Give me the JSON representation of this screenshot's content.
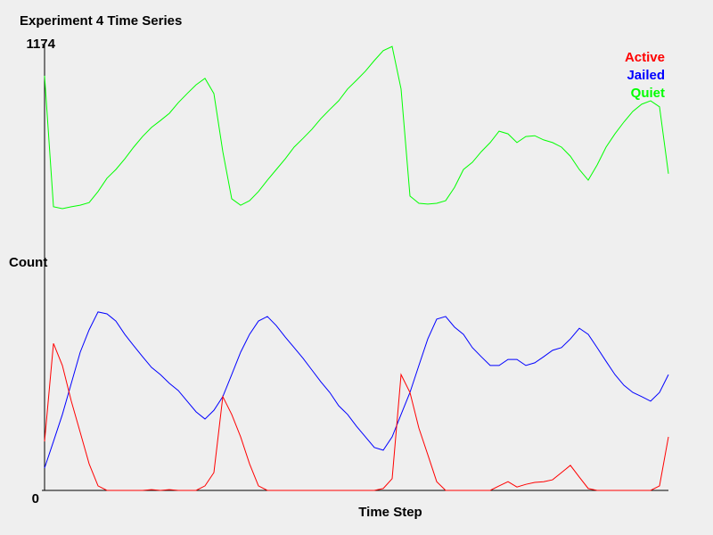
{
  "chart_data": {
    "type": "line",
    "title": "Experiment 4 Time Series",
    "x_label": "Time Step",
    "y_label": "Count",
    "ylim": [
      0,
      1174
    ],
    "yticks": [
      0,
      1174
    ],
    "legend": "top-right",
    "series": [
      {
        "name": "Active",
        "color": "#ff0000",
        "values": [
          129,
          387,
          329,
          235,
          153,
          70,
          12,
          0,
          0,
          0,
          0,
          0,
          2,
          0,
          2,
          0,
          0,
          0,
          12,
          47,
          247,
          200,
          141,
          70,
          12,
          0,
          0,
          0,
          0,
          0,
          0,
          0,
          0,
          0,
          0,
          0,
          0,
          0,
          5,
          31,
          305,
          258,
          164,
          94,
          23,
          0,
          0,
          0,
          0,
          0,
          0,
          12,
          23,
          9,
          16,
          21,
          23,
          28,
          47,
          66,
          35,
          5,
          0,
          0,
          0,
          0,
          0,
          0,
          0,
          12,
          141
        ]
      },
      {
        "name": "Jailed",
        "color": "#0000ff",
        "values": [
          59,
          129,
          200,
          282,
          364,
          423,
          470,
          465,
          446,
          411,
          381,
          352,
          324,
          305,
          282,
          263,
          235,
          207,
          188,
          211,
          247,
          305,
          364,
          411,
          446,
          458,
          434,
          404,
          376,
          348,
          317,
          286,
          258,
          223,
          200,
          169,
          141,
          113,
          106,
          141,
          200,
          258,
          329,
          399,
          451,
          458,
          430,
          411,
          376,
          352,
          329,
          329,
          345,
          345,
          329,
          336,
          352,
          369,
          376,
          399,
          427,
          411,
          376,
          340,
          305,
          277,
          258,
          247,
          235,
          258,
          305
        ]
      },
      {
        "name": "Quiet",
        "color": "#00ff00",
        "values": [
          1092,
          747,
          742,
          747,
          751,
          758,
          787,
          822,
          845,
          873,
          904,
          932,
          956,
          974,
          993,
          1021,
          1045,
          1068,
          1085,
          1045,
          892,
          768,
          751,
          763,
          787,
          817,
          845,
          873,
          904,
          927,
          951,
          979,
          1003,
          1026,
          1057,
          1080,
          1104,
          1132,
          1158,
          1169,
          1057,
          775,
          756,
          754,
          756,
          763,
          798,
          845,
          864,
          892,
          916,
          946,
          939,
          916,
          932,
          934,
          923,
          916,
          904,
          880,
          845,
          817,
          857,
          904,
          939,
          970,
          998,
          1017,
          1026,
          1010,
          834
        ]
      }
    ]
  }
}
